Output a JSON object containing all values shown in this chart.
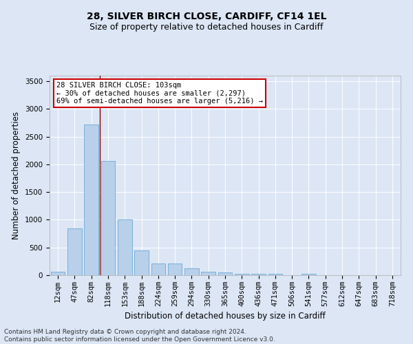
{
  "title": "28, SILVER BIRCH CLOSE, CARDIFF, CF14 1EL",
  "subtitle": "Size of property relative to detached houses in Cardiff",
  "xlabel": "Distribution of detached houses by size in Cardiff",
  "ylabel": "Number of detached properties",
  "categories": [
    "12sqm",
    "47sqm",
    "82sqm",
    "118sqm",
    "153sqm",
    "188sqm",
    "224sqm",
    "259sqm",
    "294sqm",
    "330sqm",
    "365sqm",
    "400sqm",
    "436sqm",
    "471sqm",
    "506sqm",
    "541sqm",
    "577sqm",
    "612sqm",
    "647sqm",
    "683sqm",
    "718sqm"
  ],
  "values": [
    60,
    850,
    2720,
    2060,
    1000,
    450,
    215,
    215,
    130,
    65,
    55,
    30,
    25,
    25,
    0,
    20,
    0,
    0,
    0,
    0,
    0
  ],
  "bar_color": "#b8d0ea",
  "bar_edge_color": "#6aaad4",
  "vline_x_index": 2,
  "vline_color": "#8b0000",
  "annotation_text": "28 SILVER BIRCH CLOSE: 103sqm\n← 30% of detached houses are smaller (2,297)\n69% of semi-detached houses are larger (5,216) →",
  "annotation_box_facecolor": "#ffffff",
  "annotation_box_edgecolor": "#cc0000",
  "ylim": [
    0,
    3600
  ],
  "yticks": [
    0,
    500,
    1000,
    1500,
    2000,
    2500,
    3000,
    3500
  ],
  "bg_color": "#dce6f5",
  "plot_bg_color": "#dce6f5",
  "footer_line1": "Contains HM Land Registry data © Crown copyright and database right 2024.",
  "footer_line2": "Contains public sector information licensed under the Open Government Licence v3.0.",
  "title_fontsize": 10,
  "subtitle_fontsize": 9,
  "xlabel_fontsize": 8.5,
  "ylabel_fontsize": 8.5,
  "tick_fontsize": 7.5,
  "annotation_fontsize": 7.5,
  "footer_fontsize": 6.5
}
